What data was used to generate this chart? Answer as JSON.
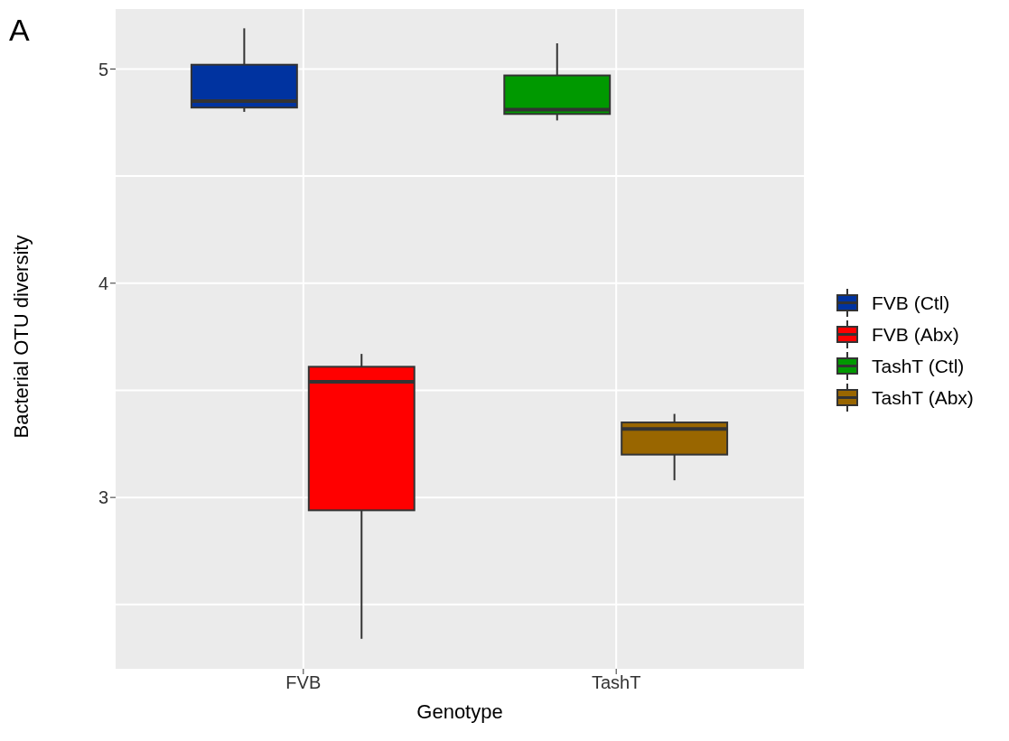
{
  "chart_data": {
    "type": "box",
    "xlabel": "Genotype",
    "ylabel": "Bacterial OTU diversity",
    "categories": [
      "FVB",
      "TashT"
    ],
    "ylim": [
      2.2,
      5.28
    ],
    "yticks": [
      3,
      4,
      5
    ],
    "grid": true,
    "legend": "right",
    "annotations": [
      "A"
    ],
    "series": [
      {
        "name": "FVB (Ctl)",
        "color": "#0033a0",
        "boxes": [
          {
            "low": 4.8,
            "q1": 4.82,
            "median": 4.85,
            "q3": 5.02,
            "high": 5.19
          },
          null
        ]
      },
      {
        "name": "FVB (Abx)",
        "color": "#ff0000",
        "boxes": [
          {
            "low": 2.34,
            "q1": 2.94,
            "median": 3.54,
            "q3": 3.61,
            "high": 3.67
          },
          null
        ]
      },
      {
        "name": "TashT (Ctl)",
        "color": "#009900",
        "boxes": [
          null,
          {
            "low": 4.76,
            "q1": 4.79,
            "median": 4.81,
            "q3": 4.97,
            "high": 5.12
          }
        ]
      },
      {
        "name": "TashT (Abx)",
        "color": "#996600",
        "boxes": [
          null,
          {
            "low": 3.08,
            "q1": 3.2,
            "median": 3.32,
            "q3": 3.35,
            "high": 3.39
          }
        ]
      }
    ]
  }
}
